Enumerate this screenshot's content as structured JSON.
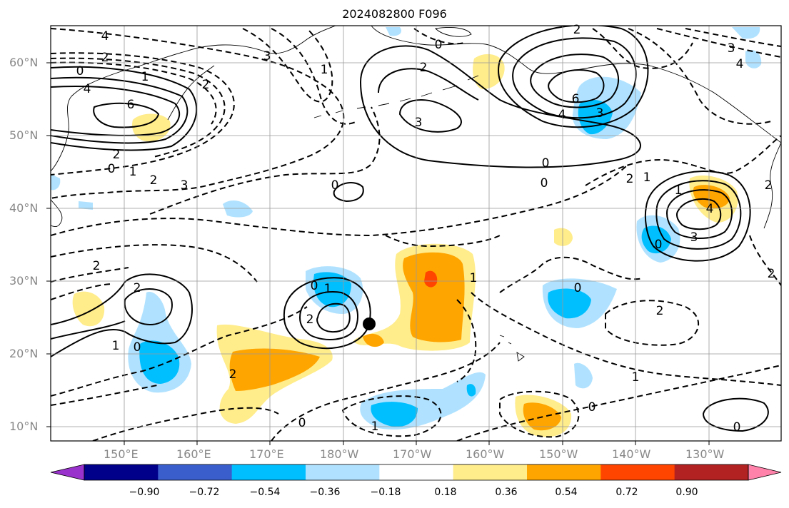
{
  "title": "2024082800 F096",
  "lon_labels": [
    "150°E",
    "160°E",
    "170°E",
    "180°W",
    "170°W",
    "160°W",
    "150°W",
    "140°W",
    "130°W"
  ],
  "lat_labels": [
    "60°N",
    "50°N",
    "40°N",
    "30°N",
    "20°N",
    "10°N"
  ],
  "colorbar": {
    "ticks": [
      "−0.90",
      "−0.72",
      "−0.54",
      "−0.36",
      "−0.18",
      "0.18",
      "0.36",
      "0.54",
      "0.72",
      "0.90"
    ],
    "colors": [
      "#9932cc",
      "#00008b",
      "#3a5fcd",
      "#00bfff",
      "#b0e2ff",
      "#ffffff",
      "#ffec8b",
      "#ffa500",
      "#ff4500",
      "#b22222",
      "#ff82ab"
    ]
  },
  "contour_labels": {
    "c1": "4",
    "c2": "2",
    "c3": "0",
    "c4": "4",
    "c5": "1",
    "c6": "6",
    "c7": "2",
    "c8": "0",
    "c9": "1",
    "c10": "2",
    "c11": "3",
    "c12": "3",
    "c13": "2",
    "c14": "1",
    "c15": "3",
    "c16": "2",
    "c17": "0",
    "c18": "2",
    "c19": "6",
    "c20": "4",
    "c21": "3",
    "c22": "0",
    "c23": "0",
    "c24": "3",
    "c25": "4",
    "c26": "1",
    "c27": "2",
    "c28": "3",
    "c29": "4",
    "c30": "0",
    "c31": "2",
    "c32": "2",
    "c33": "1",
    "c34": "0",
    "c35": "2",
    "c36": "0",
    "c37": "1",
    "c38": "2",
    "c39": "2",
    "c40": "1",
    "c41": "0",
    "c42": "1",
    "c43": "0",
    "c44": "1",
    "c45": "0",
    "c46": "2"
  },
  "marker": {
    "name": "storm-center",
    "color": "#000000"
  }
}
